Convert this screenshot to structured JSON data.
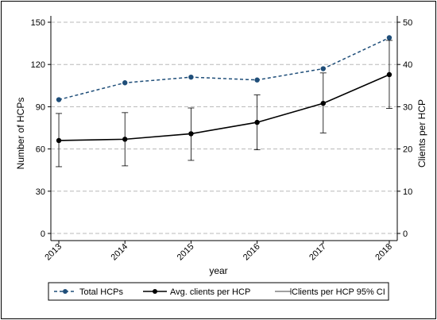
{
  "chart_data": {
    "type": "line",
    "xlabel": "year",
    "ylabel_left": "Number of HCPs",
    "ylabel_right": "Clients per HCP",
    "x": [
      "2013",
      "2014",
      "2015",
      "2016",
      "2017",
      "2018"
    ],
    "left_axis": {
      "ylim": [
        0,
        150
      ],
      "ticks": [
        0,
        30,
        60,
        90,
        120,
        150
      ]
    },
    "right_axis": {
      "ylim": [
        0,
        50
      ],
      "ticks": [
        0,
        10,
        20,
        30,
        40,
        50
      ]
    },
    "grid": true,
    "legend_position": "bottom",
    "series": [
      {
        "name": "Total HCPs",
        "axis": "left",
        "style": "dashed",
        "color": "#1f4e79",
        "values": [
          95,
          107,
          111,
          109,
          117,
          139
        ]
      },
      {
        "name": "Avg. clients per HCP",
        "axis": "right",
        "style": "solid",
        "color": "#000000",
        "values": [
          22,
          22.3,
          23.6,
          26.3,
          30.8,
          37.6
        ]
      },
      {
        "name": "Clients per HCP 95% CI",
        "axis": "right",
        "style": "errorbar",
        "color": "#000000",
        "lower": [
          15.8,
          16.0,
          17.3,
          19.8,
          23.8,
          29.6
        ],
        "upper": [
          28.4,
          28.6,
          29.7,
          32.8,
          38.0,
          45.7
        ]
      }
    ]
  }
}
